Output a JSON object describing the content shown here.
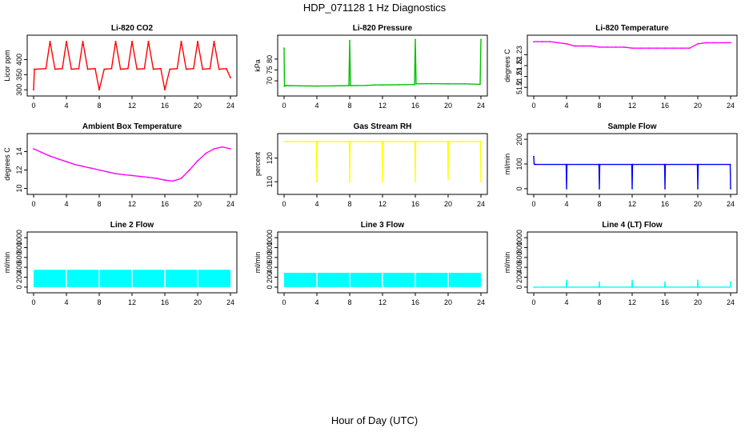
{
  "figure": {
    "title": "HDP_071128  1 Hz Diagnostics",
    "xlabel": "Hour of Day (UTC)"
  },
  "chart_data": [
    {
      "type": "line",
      "title": "Li-820 CO2",
      "ylabel": "Licor ppm",
      "color": "#ff0000",
      "xlim": [
        0,
        24
      ],
      "ylim": [
        290,
        470
      ],
      "xticks": [
        0,
        4,
        8,
        12,
        16,
        20,
        24
      ],
      "yticks": [
        300,
        350,
        400
      ],
      "x": [
        0,
        0.1,
        1.5,
        2,
        2.6,
        3.5,
        4,
        4.6,
        5.5,
        6,
        6.6,
        7.5,
        8,
        8.6,
        9.5,
        10,
        10.6,
        11.5,
        12,
        12.6,
        13.5,
        14,
        14.6,
        15.5,
        16,
        16.6,
        17.5,
        18,
        18.6,
        19.5,
        20,
        20.6,
        21.5,
        22,
        22.6,
        23.5,
        24
      ],
      "y": [
        300,
        368,
        370,
        460,
        368,
        370,
        460,
        368,
        370,
        460,
        368,
        370,
        300,
        368,
        370,
        460,
        368,
        370,
        460,
        368,
        370,
        460,
        368,
        370,
        300,
        368,
        370,
        460,
        368,
        370,
        460,
        368,
        370,
        460,
        368,
        370,
        340
      ]
    },
    {
      "type": "line",
      "title": "Li-820 Pressure",
      "ylabel": "kPa",
      "color": "#00c000",
      "xlim": [
        0,
        24
      ],
      "ylim": [
        64.5,
        89.5
      ],
      "xticks": [
        0,
        4,
        8,
        12,
        16,
        20,
        24
      ],
      "yticks": [
        70,
        75,
        80
      ],
      "x": [
        0,
        0.05,
        0.2,
        2,
        4,
        6,
        7.9,
        8,
        8.1,
        10,
        11,
        12,
        14,
        15.9,
        16,
        16.1,
        18,
        20,
        22,
        23.9,
        24
      ],
      "y": [
        85,
        67.5,
        67.8,
        67.7,
        67.6,
        67.7,
        67.8,
        88.5,
        67.8,
        67.9,
        68.1,
        68.1,
        68.2,
        68.3,
        89,
        68.6,
        68.7,
        68.6,
        68.6,
        68.4,
        89
      ]
    },
    {
      "type": "line",
      "title": "Li-820 Temperature",
      "ylabel": "degrees C",
      "color": "#ff00ff",
      "xlim": [
        0,
        24
      ],
      "ylim": [
        51.195,
        51.245
      ],
      "xticks": [
        0,
        4,
        8,
        12,
        16,
        20,
        24
      ],
      "yticks": [
        51.2,
        51.21,
        51.22,
        51.23
      ],
      "x": [
        0,
        1,
        2,
        3,
        4,
        5,
        6,
        7,
        8,
        9,
        10,
        11,
        12,
        13,
        14,
        15,
        16,
        17,
        18,
        19,
        20,
        21,
        22,
        23,
        24
      ],
      "y": [
        51.242,
        51.242,
        51.242,
        51.241,
        51.24,
        51.238,
        51.238,
        51.238,
        51.237,
        51.237,
        51.237,
        51.237,
        51.236,
        51.236,
        51.236,
        51.236,
        51.236,
        51.236,
        51.236,
        51.236,
        51.24,
        51.241,
        51.241,
        51.241,
        51.241
      ]
    },
    {
      "type": "line",
      "title": "Ambient Box Temperature",
      "ylabel": "degrees C",
      "color": "#ff00ff",
      "xlim": [
        0,
        24
      ],
      "ylim": [
        9.7,
        15.6
      ],
      "xticks": [
        0,
        4,
        8,
        12,
        16,
        20,
        24
      ],
      "yticks": [
        10,
        12,
        14
      ],
      "x": [
        0,
        1,
        2,
        3,
        4,
        5,
        6,
        7,
        8,
        9,
        10,
        11,
        12,
        13,
        14,
        15,
        16,
        17,
        18,
        19,
        20,
        21,
        22,
        23,
        24
      ],
      "y": [
        14.3,
        13.9,
        13.5,
        13.2,
        12.9,
        12.6,
        12.4,
        12.2,
        12.0,
        11.8,
        11.6,
        11.5,
        11.4,
        11.3,
        11.2,
        11.1,
        10.9,
        10.8,
        11.1,
        12.0,
        13.0,
        13.8,
        14.3,
        14.5,
        14.3
      ]
    },
    {
      "type": "line",
      "title": "Gas Stream RH",
      "ylabel": "percent",
      "color": "#ffff00",
      "xlim": [
        0,
        24
      ],
      "ylim": [
        106,
        129
      ],
      "xticks": [
        0,
        4,
        8,
        12,
        16,
        20,
        24
      ],
      "yticks": [
        110,
        120
      ],
      "x": [
        0,
        3.95,
        4,
        4.05,
        7.95,
        8,
        8.05,
        11.95,
        12,
        12.05,
        15.95,
        16,
        16.05,
        19.95,
        20,
        20.05,
        23.95,
        24
      ],
      "y": [
        127,
        127,
        110,
        127,
        127,
        110,
        127,
        127,
        110,
        127,
        127,
        110,
        127,
        127,
        111,
        127,
        127,
        110
      ]
    },
    {
      "type": "line",
      "title": "Sample Flow",
      "ylabel": "ml/min",
      "color": "#0000ff",
      "xlim": [
        0,
        24
      ],
      "ylim": [
        -10,
        210
      ],
      "xticks": [
        0,
        4,
        8,
        12,
        16,
        20,
        24
      ],
      "yticks": [
        0,
        100,
        200
      ],
      "x": [
        0,
        0.05,
        0.2,
        3.95,
        4,
        4.05,
        7.95,
        8,
        8.05,
        11.95,
        12,
        12.05,
        15.95,
        16,
        16.05,
        19.95,
        20,
        20.05,
        23.95,
        24
      ],
      "y": [
        130,
        100,
        98,
        98,
        0,
        98,
        98,
        0,
        98,
        98,
        0,
        98,
        98,
        0,
        98,
        98,
        0,
        98,
        98,
        0
      ]
    },
    {
      "type": "area",
      "title": "Line 2 Flow",
      "ylabel": "ml/min",
      "color": "#00ffff",
      "xlim": [
        0,
        24
      ],
      "ylim": [
        -50,
        1050
      ],
      "xticks": [
        0,
        4,
        8,
        12,
        16,
        20,
        24
      ],
      "yticks": [
        0,
        200,
        400,
        600,
        800,
        1000
      ],
      "x": [
        0,
        4,
        8,
        12,
        16,
        20,
        24
      ],
      "y": [
        350,
        350,
        350,
        350,
        350,
        350,
        350
      ]
    },
    {
      "type": "area",
      "title": "Line 3 Flow",
      "ylabel": "ml/min",
      "color": "#00ffff",
      "xlim": [
        0,
        24
      ],
      "ylim": [
        -50,
        1050
      ],
      "xticks": [
        0,
        4,
        8,
        12,
        16,
        20,
        24
      ],
      "yticks": [
        0,
        200,
        400,
        600,
        800,
        1000
      ],
      "x": [
        0,
        4,
        8,
        12,
        16,
        20,
        24
      ],
      "y": [
        290,
        290,
        290,
        290,
        290,
        290,
        290
      ]
    },
    {
      "type": "line",
      "title": "Line 4 (LT) Flow",
      "ylabel": "ml/min",
      "color": "#00ffff",
      "xlim": [
        0,
        24
      ],
      "ylim": [
        -50,
        1050
      ],
      "xticks": [
        0,
        4,
        8,
        12,
        16,
        20,
        24
      ],
      "yticks": [
        0,
        200,
        400,
        600,
        800,
        1000
      ],
      "x": [
        0,
        3.95,
        4,
        4.05,
        7.95,
        8,
        8.05,
        11.95,
        12,
        12.05,
        15.95,
        16,
        16.05,
        19.95,
        20,
        20.05,
        23.95,
        24
      ],
      "y": [
        0,
        0,
        140,
        0,
        0,
        100,
        0,
        0,
        140,
        0,
        0,
        100,
        0,
        0,
        140,
        0,
        0,
        100
      ]
    }
  ]
}
